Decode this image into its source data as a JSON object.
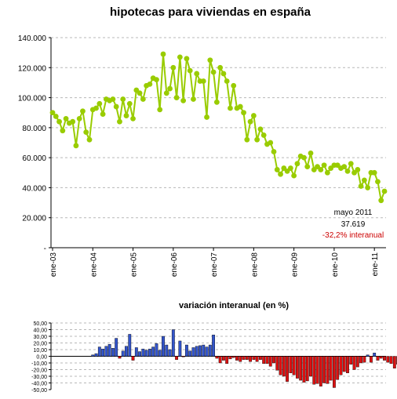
{
  "chart_data": [
    {
      "type": "line",
      "title": "hipotecas para viviendas en españa",
      "xlabel": "",
      "ylabel": "",
      "ylim": [
        0,
        140000
      ],
      "yticks": [
        0,
        20000,
        40000,
        60000,
        80000,
        100000,
        120000,
        140000
      ],
      "ytick_labels": [
        "-",
        "20.000",
        "40.000",
        "60.000",
        "80.000",
        "100.000",
        "120.000",
        "140.000"
      ],
      "xtick_labels": [
        "ene-03",
        "ene-04",
        "ene-05",
        "ene-06",
        "ene-07",
        "ene-08",
        "ene-09",
        "ene-10",
        "ene-11"
      ],
      "start": "ene-03",
      "grid": true,
      "series_color": "#99cc00",
      "values": [
        90000,
        87500,
        84000,
        78000,
        86000,
        83000,
        84000,
        68000,
        86000,
        91000,
        77000,
        72000,
        92000,
        93000,
        96000,
        89000,
        99000,
        98000,
        99000,
        94000,
        84000,
        99000,
        88000,
        96000,
        86000,
        105000,
        103000,
        99000,
        108000,
        109000,
        113000,
        112000,
        92000,
        129000,
        103000,
        106000,
        120000,
        100000,
        127000,
        98000,
        126000,
        118000,
        99000,
        116000,
        111000,
        111000,
        87000,
        125000,
        117000,
        97000,
        120000,
        116000,
        111000,
        93000,
        108000,
        93000,
        94000,
        90000,
        72000,
        84000,
        88000,
        72000,
        79000,
        75000,
        69000,
        70000,
        64000,
        52000,
        49000,
        53000,
        51000,
        53000,
        48000,
        56000,
        61000,
        60000,
        54000,
        63000,
        52000,
        54000,
        52000,
        55000,
        50000,
        53000,
        55000,
        55000,
        53000,
        54000,
        51000,
        56000,
        50000,
        52000,
        41000,
        45000,
        40000,
        50000,
        50000,
        44000,
        31500,
        37619
      ],
      "annotation": {
        "line1": "mayo 2011",
        "line2": "37.619",
        "line3": "-32,2% interanual",
        "line3_color": "#cc0000"
      }
    },
    {
      "type": "bar",
      "title": "variación interanual (en %)",
      "xlabel": "",
      "ylabel": "",
      "ylim": [
        -50,
        50
      ],
      "yticks": [
        -50,
        -40,
        -30,
        -20,
        -10,
        0,
        10,
        20,
        30,
        40,
        50
      ],
      "ytick_labels": [
        "-50,00",
        "-40,00",
        "-30,00",
        "-20,00",
        "-10,00",
        "0,00",
        "10,00",
        "20,00",
        "30,00",
        "40,00",
        "50,00"
      ],
      "start": "ene-04",
      "grid": true,
      "positive_color": "#3355cc",
      "negative_color": "#dd1111",
      "values": [
        2,
        4,
        14,
        11,
        15,
        18,
        12,
        27,
        -3,
        8,
        15,
        33,
        -6,
        13,
        7,
        11,
        9,
        11,
        14,
        19,
        9,
        30,
        17,
        10,
        40,
        -5,
        23,
        -1,
        17,
        8,
        13,
        15,
        16,
        17,
        14,
        17,
        32,
        -3,
        -10,
        -6,
        -11,
        -4,
        -2,
        -6,
        -8,
        -5,
        -5,
        -8,
        -5,
        -8,
        -5,
        -11,
        -11,
        -15,
        -10,
        -21,
        -28,
        -30,
        -38,
        -25,
        -28,
        -33,
        -36,
        -39,
        -37,
        -30,
        -42,
        -41,
        -45,
        -40,
        -41,
        -36,
        -47,
        -35,
        -28,
        -23,
        -25,
        -12,
        -20,
        -16,
        -10,
        -9,
        2,
        -9,
        5,
        -6,
        -3,
        -6,
        -9,
        -11,
        -18,
        -12,
        -24,
        -21,
        -20,
        -8,
        -28,
        -36,
        -30
      ]
    }
  ]
}
